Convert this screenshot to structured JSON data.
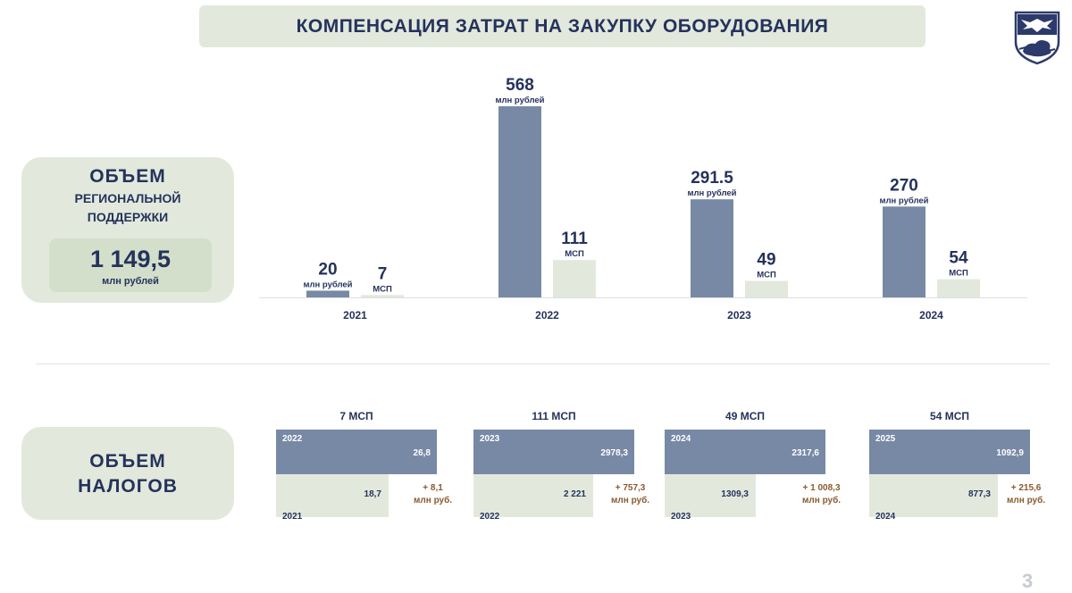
{
  "title": "КОМПЕНСАЦИЯ ЗАТРАТ НА ЗАКУПКУ ОБОРУДОВАНИЯ",
  "support_panel": {
    "heading_line1": "ОБЪЕМ",
    "heading_line2": "РЕГИОНАЛЬНОЙ",
    "heading_line3": "ПОДДЕРЖКИ",
    "total_value": "1 149,5",
    "total_unit": "млн рублей"
  },
  "taxes_panel": {
    "heading_line1": "ОБЪЕМ",
    "heading_line2": "НАЛОГОВ"
  },
  "page_number": "3",
  "colors": {
    "navy_text": "#25325c",
    "bar_blue": "#7889a6",
    "bar_green": "#e2e9dc",
    "delta_brown": "#8a5a2e"
  },
  "chart_data": [
    {
      "type": "bar",
      "categories": [
        "2021",
        "2022",
        "2023",
        "2024"
      ],
      "series": [
        {
          "values": [
            20,
            568,
            291.5,
            270
          ],
          "labels": [
            "20",
            "568",
            "291.5",
            "270"
          ],
          "unit": "млн рублей",
          "color": "#7889a6"
        },
        {
          "values": [
            7,
            111,
            49,
            54
          ],
          "labels": [
            "7",
            "111",
            "49",
            "54"
          ],
          "unit": "МСП",
          "color": "#e2e9dc"
        }
      ]
    },
    {
      "type": "table",
      "groups": [
        {
          "title": "7 МСП",
          "top_year": "2022",
          "top_value": "26,8",
          "top_num": 26.8,
          "bottom_year": "2021",
          "bottom_value": "18,7",
          "bottom_num": 18.7,
          "delta": "+ 8,1",
          "delta_unit": "млн руб."
        },
        {
          "title": "111 МСП",
          "top_year": "2023",
          "top_value": "2978,3",
          "top_num": 2978.3,
          "bottom_year": "2022",
          "bottom_value": "2 221",
          "bottom_num": 2221,
          "delta": "+ 757,3",
          "delta_unit": "млн руб."
        },
        {
          "title": "49 МСП",
          "top_year": "2024",
          "top_value": "2317,6",
          "top_num": 2317.6,
          "bottom_year": "2023",
          "bottom_value": "1309,3",
          "bottom_num": 1309.3,
          "delta": "+ 1 008,3",
          "delta_unit": "млн руб."
        },
        {
          "title": "54 МСП",
          "top_year": "2025",
          "top_value": "1092,9",
          "top_num": 1092.9,
          "bottom_year": "2024",
          "bottom_value": "877,3",
          "bottom_num": 877.3,
          "delta": "+ 215,6",
          "delta_unit": "млн руб."
        }
      ]
    }
  ]
}
